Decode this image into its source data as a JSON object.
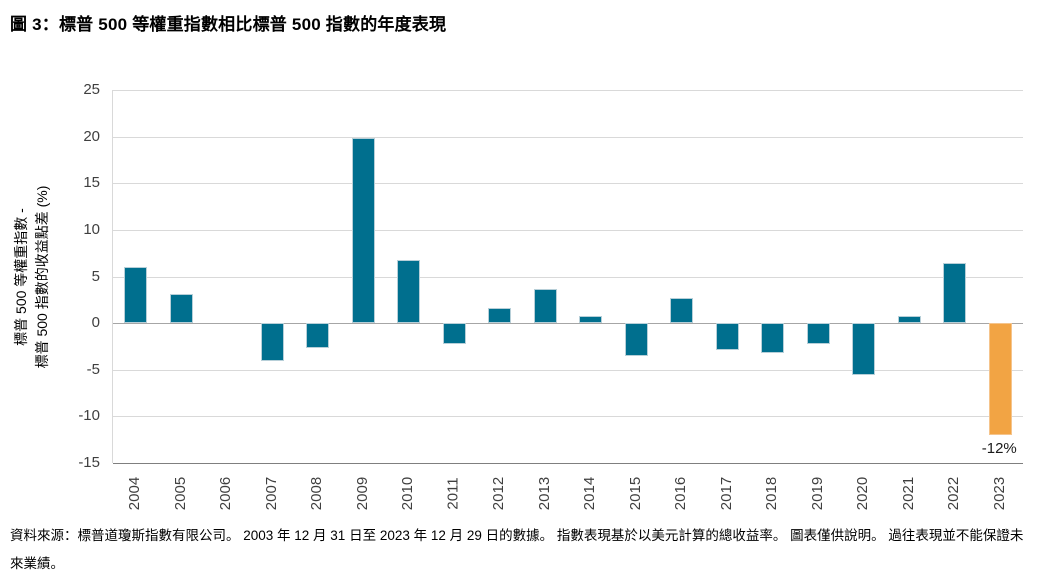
{
  "title": "圖 3：標普 500 等權重指數相比標普 500 指數的年度表現",
  "footer": "資料來源：標普道瓊斯指數有限公司。 2003 年 12 月 31 日至 2023 年 12 月 29 日的數據。 指數表現基於以美元計算的總收益率。 圖表僅供說明。 過往表現並不能保證未來業績。",
  "chart_data": {
    "type": "bar",
    "title": "圖 3：標普 500 等權重指數相比標普 500 指數的年度表現",
    "categories": [
      "2004",
      "2005",
      "2006",
      "2007",
      "2008",
      "2009",
      "2010",
      "2011",
      "2012",
      "2013",
      "2014",
      "2015",
      "2016",
      "2017",
      "2018",
      "2019",
      "2020",
      "2021",
      "2022",
      "2023"
    ],
    "values": [
      6.0,
      3.1,
      0.0,
      -4.1,
      -2.7,
      19.8,
      6.8,
      -2.2,
      1.6,
      3.7,
      0.8,
      -3.5,
      2.7,
      -2.9,
      -3.2,
      -2.2,
      -5.6,
      0.8,
      6.5,
      -12.0
    ],
    "ylabel_lines": [
      "標普 500 等權重指數 -",
      "標普 500 指數的收益點差 (%)"
    ],
    "xlabel": "",
    "ylim": [
      -15,
      25
    ],
    "yticks": [
      25,
      20,
      15,
      10,
      5,
      0,
      -5,
      -10,
      -15
    ],
    "grid": true,
    "legend": "none",
    "bar_color": "#006f8e",
    "bar_border": "#b7cfd8",
    "highlight_color": "#f2a444",
    "highlight_border": "#f5c48c",
    "highlight_index": 19,
    "annotation": {
      "text": "-12%",
      "category": "2023"
    }
  }
}
